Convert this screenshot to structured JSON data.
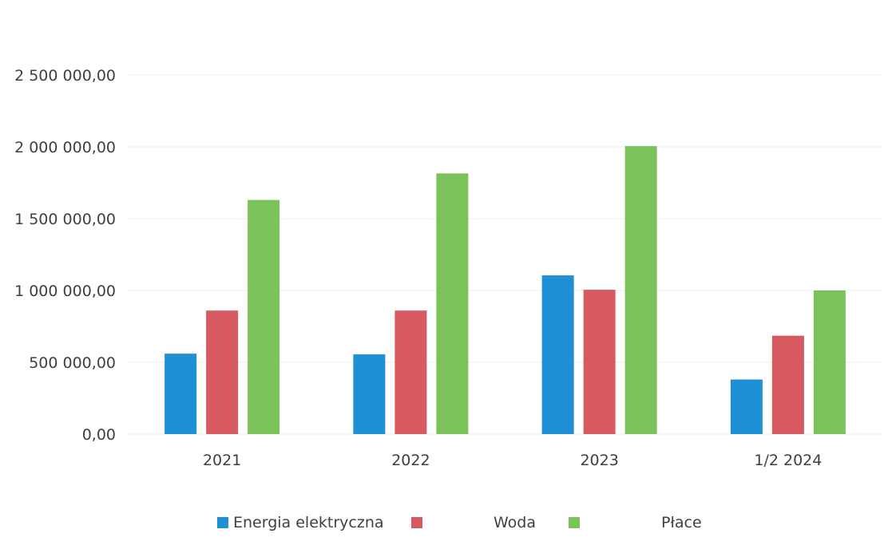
{
  "chart_data": {
    "type": "bar",
    "categories": [
      "2021",
      "2022",
      "2023",
      "1/2 2024"
    ],
    "series": [
      {
        "name": "Energia elektryczna",
        "color": "#1f8fd6",
        "values": [
          560000,
          555000,
          1105000,
          380000
        ]
      },
      {
        "name": "Woda",
        "color": "#d65a5f",
        "values": [
          860000,
          860000,
          1005000,
          685000
        ]
      },
      {
        "name": "Płace",
        "color": "#7cc25a",
        "values": [
          1630000,
          1815000,
          2005000,
          1000000
        ]
      }
    ],
    "y_ticks": [
      "0,00",
      "500 000,00",
      "1 000 000,00",
      "1 500 000,00",
      "2 000 000,00",
      "2 500 000,00"
    ],
    "ylim": [
      0,
      2500000
    ],
    "grid": true,
    "legend_position": "bottom"
  }
}
